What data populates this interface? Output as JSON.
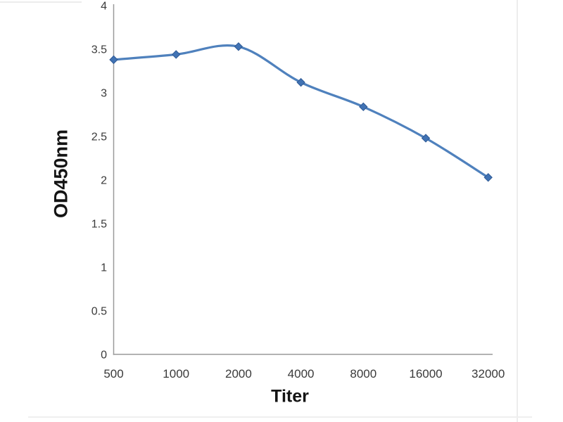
{
  "chart_data": {
    "type": "line",
    "title": "",
    "xlabel": "Titer",
    "ylabel": "OD450nm",
    "categories": [
      "500",
      "1000",
      "2000",
      "4000",
      "8000",
      "16000",
      "32000"
    ],
    "series": [
      {
        "name": "OD450nm",
        "values": [
          3.38,
          3.44,
          3.53,
          3.12,
          2.84,
          2.48,
          2.03
        ]
      }
    ],
    "ylim": [
      0,
      4
    ],
    "ytick_step": 0.5,
    "grid": false,
    "legend_position": "none",
    "smooth_line": true,
    "marker": "diamond",
    "colors": {
      "line": "#4f81bd",
      "marker_fill": "#4173b4",
      "marker_edge": "#2f5a96",
      "axis_line": "#9a9a9a",
      "tick_label": "#3a3a3a",
      "axis_title": "#141414",
      "background": "#ffffff"
    }
  }
}
